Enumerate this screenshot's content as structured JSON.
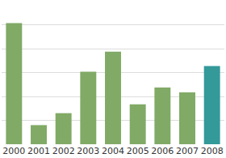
{
  "chart_data": {
    "type": "bar",
    "categories": [
      "2000",
      "2001",
      "2002",
      "2003",
      "2004",
      "2005",
      "2006",
      "2007",
      "2008"
    ],
    "values": [
      5.07,
      0.8,
      1.3,
      3.03,
      3.87,
      1.67,
      2.37,
      2.17,
      3.27
    ],
    "colors": [
      "#80aa66",
      "#80aa66",
      "#80aa66",
      "#80aa66",
      "#80aa66",
      "#80aa66",
      "#80aa66",
      "#80aa66",
      "#339999"
    ],
    "ylim": [
      0,
      6
    ],
    "yticks": [
      0,
      1,
      2,
      3,
      4,
      5,
      6
    ],
    "grid": true,
    "tick_labels": "x"
  }
}
